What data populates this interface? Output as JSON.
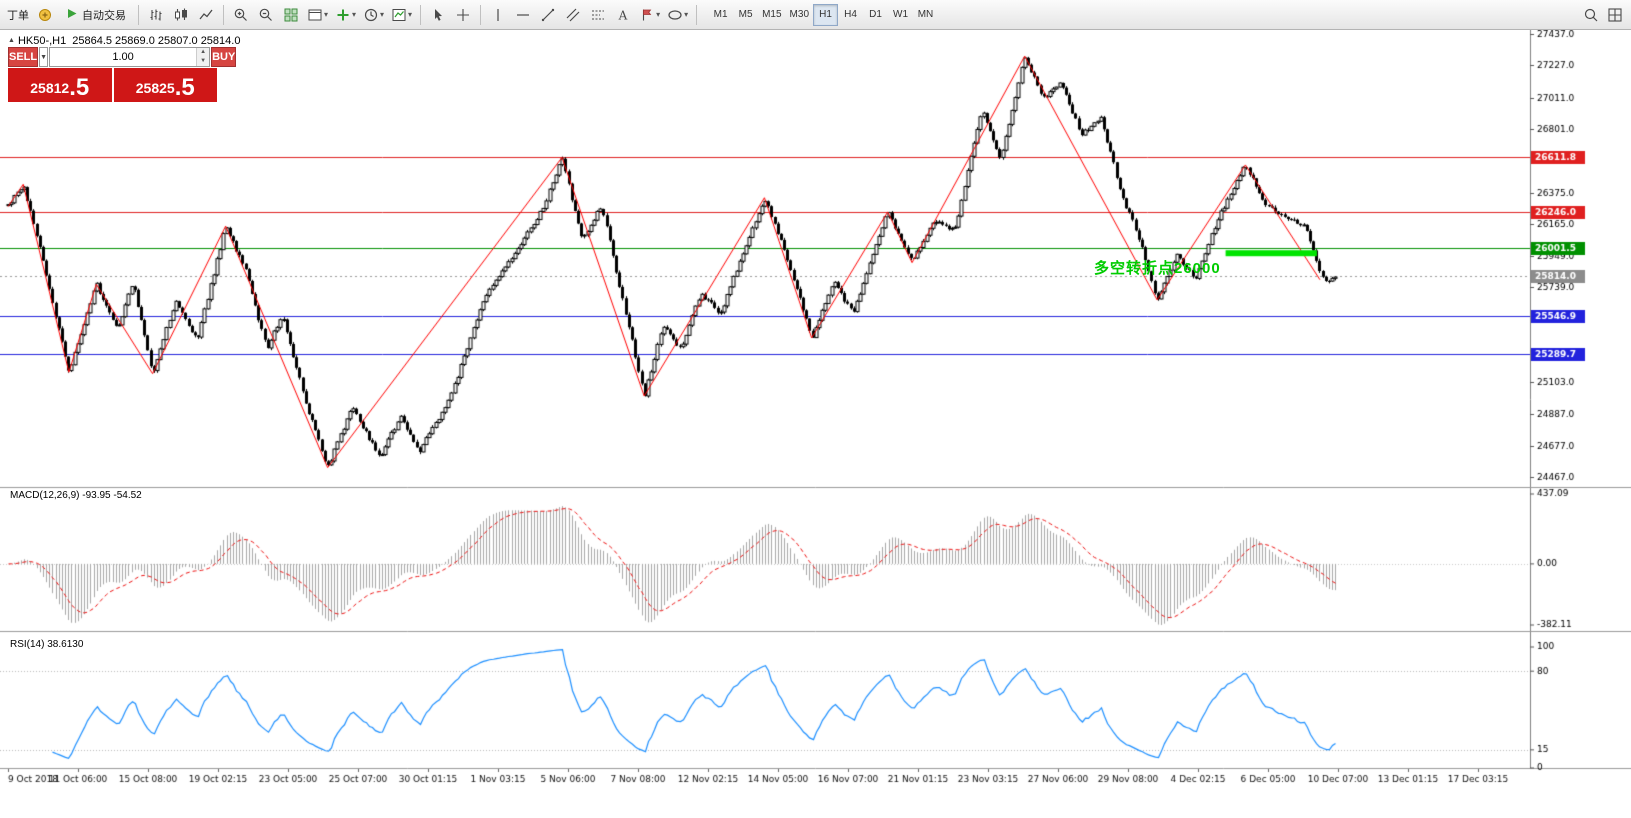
{
  "toolbar": {
    "order_label": "丁单",
    "autotrade_label": "自动交易",
    "timeframes": [
      "M1",
      "M5",
      "M15",
      "M30",
      "H1",
      "H4",
      "D1",
      "W1",
      "MN"
    ],
    "active_timeframe": "H1",
    "icon_names": [
      "new-order-icon",
      "autotrade-play-icon",
      "bar-chart-icon",
      "candlestick-chart-icon",
      "line-chart-icon",
      "zoom-in-icon",
      "zoom-out-icon",
      "tile-windows-icon",
      "new-chart-icon",
      "indicators-plus-icon",
      "periods-clock-icon",
      "templates-icon",
      "cursor-icon",
      "crosshair-icon",
      "vertical-line-icon",
      "horizontal-line-icon",
      "trendline-icon",
      "channel-icon",
      "fibonacci-icon",
      "text-icon",
      "arrow-label-icon",
      "shapes-icon",
      "search-icon",
      "chart-grid-icon"
    ]
  },
  "chart": {
    "symbol_period": "HK50-,H1",
    "ohlc": "25864.5 25869.0 25807.0 25814.0"
  },
  "trade_panel": {
    "sell_label": "SELL",
    "buy_label": "BUY",
    "volume": "1.00",
    "bid_main": "25812",
    "bid_frac": ".5",
    "ask_main": "25825",
    "ask_frac": ".5"
  },
  "annotation": {
    "text": "多空转折点26000",
    "color": "#00cc00"
  },
  "indicators": {
    "macd_label": "MACD(12,26,9) -93.95 -54.52",
    "rsi_label": "RSI(14) 38.6130"
  },
  "chart_data": [
    {
      "type": "candlestick",
      "title": "HK50-,H1",
      "ylim": [
        24400,
        27465
      ],
      "y_ticks": [
        27437.0,
        27227.0,
        27011.0,
        26801.0,
        26375.0,
        26165.0,
        25949.0,
        25739.0,
        25103.0,
        24887.0,
        24677.0,
        24467.0
      ],
      "x_labels": [
        "9 Oct 2018",
        "11 Oct 06:00",
        "15 Oct 08:00",
        "19 Oct 02:15",
        "23 Oct 05:00",
        "25 Oct 07:00",
        "30 Oct 01:15",
        "1 Nov 03:15",
        "5 Nov 06:00",
        "7 Nov 08:00",
        "12 Nov 02:15",
        "14 Nov 05:00",
        "16 Nov 07:00",
        "21 Nov 01:15",
        "23 Nov 03:15",
        "27 Nov 06:00",
        "29 Nov 08:00",
        "4 Dec 02:15",
        "6 Dec 05:00",
        "10 Dec 07:00",
        "13 Dec 01:15",
        "17 Dec 03:15"
      ],
      "price_path": [
        [
          0,
          26280
        ],
        [
          0.01,
          26430
        ],
        [
          0.022,
          25950
        ],
        [
          0.04,
          25170
        ],
        [
          0.058,
          25760
        ],
        [
          0.072,
          25450
        ],
        [
          0.082,
          25780
        ],
        [
          0.095,
          25160
        ],
        [
          0.11,
          25650
        ],
        [
          0.124,
          25380
        ],
        [
          0.143,
          26150
        ],
        [
          0.156,
          25850
        ],
        [
          0.17,
          25320
        ],
        [
          0.18,
          25560
        ],
        [
          0.196,
          24950
        ],
        [
          0.21,
          24530
        ],
        [
          0.226,
          24940
        ],
        [
          0.244,
          24600
        ],
        [
          0.258,
          24880
        ],
        [
          0.27,
          24640
        ],
        [
          0.29,
          24980
        ],
        [
          0.312,
          25650
        ],
        [
          0.335,
          26000
        ],
        [
          0.352,
          26280
        ],
        [
          0.364,
          26610
        ],
        [
          0.377,
          26060
        ],
        [
          0.39,
          26290
        ],
        [
          0.404,
          25650
        ],
        [
          0.418,
          25010
        ],
        [
          0.43,
          25480
        ],
        [
          0.442,
          25320
        ],
        [
          0.455,
          25700
        ],
        [
          0.468,
          25560
        ],
        [
          0.482,
          25950
        ],
        [
          0.497,
          26340
        ],
        [
          0.51,
          26000
        ],
        [
          0.528,
          25400
        ],
        [
          0.542,
          25780
        ],
        [
          0.555,
          25560
        ],
        [
          0.578,
          26245
        ],
        [
          0.594,
          25905
        ],
        [
          0.608,
          26190
        ],
        [
          0.622,
          26120
        ],
        [
          0.64,
          26940
        ],
        [
          0.652,
          26590
        ],
        [
          0.668,
          27290
        ],
        [
          0.68,
          27000
        ],
        [
          0.692,
          27120
        ],
        [
          0.705,
          26760
        ],
        [
          0.718,
          26880
        ],
        [
          0.732,
          26350
        ],
        [
          0.742,
          26100
        ],
        [
          0.755,
          25655
        ],
        [
          0.768,
          25950
        ],
        [
          0.78,
          25800
        ],
        [
          0.795,
          26200
        ],
        [
          0.813,
          26560
        ],
        [
          0.826,
          26300
        ],
        [
          0.84,
          26190
        ],
        [
          0.852,
          26160
        ],
        [
          0.862,
          25820
        ],
        [
          0.868,
          25780
        ],
        [
          0.872,
          25814
        ]
      ],
      "zigzag": [
        [
          0,
          26280
        ],
        [
          0.01,
          26430
        ],
        [
          0.04,
          25170
        ],
        [
          0.058,
          25760
        ],
        [
          0.095,
          25160
        ],
        [
          0.143,
          26150
        ],
        [
          0.21,
          24530
        ],
        [
          0.364,
          26610
        ],
        [
          0.418,
          25010
        ],
        [
          0.497,
          26340
        ],
        [
          0.528,
          25400
        ],
        [
          0.578,
          26245
        ],
        [
          0.594,
          25905
        ],
        [
          0.668,
          27290
        ],
        [
          0.755,
          25655
        ],
        [
          0.813,
          26560
        ],
        [
          0.862,
          25790
        ]
      ],
      "hlines": [
        {
          "value": 26611.8,
          "color": "#e02020"
        },
        {
          "value": 26246.0,
          "color": "#e02020"
        },
        {
          "value": 26001.5,
          "color": "#009000"
        },
        {
          "value": 25546.9,
          "color": "#2222dd"
        },
        {
          "value": 25289.7,
          "color": "#2222dd"
        }
      ],
      "current_price": 25814.0,
      "highlight_segment": {
        "x1": 0.8,
        "x2": 0.86,
        "price": 25968,
        "color": "#00e400"
      },
      "candles_end_fraction": 0.872,
      "candle_count": 420
    },
    {
      "type": "macd",
      "params": [
        12,
        26,
        9
      ],
      "current_values": [
        -93.95,
        -54.52
      ],
      "y_ticks": [
        437.09,
        0,
        -382.11
      ],
      "histogram_color": "#a8a8a8",
      "signal_color": "#ee1111",
      "signal_style": "dashed"
    },
    {
      "type": "rsi",
      "params": [
        14
      ],
      "current_value": 38.613,
      "y_ticks": [
        100,
        80,
        15,
        0
      ],
      "levels": [
        80,
        15
      ],
      "line_color": "#1e90ff"
    }
  ]
}
